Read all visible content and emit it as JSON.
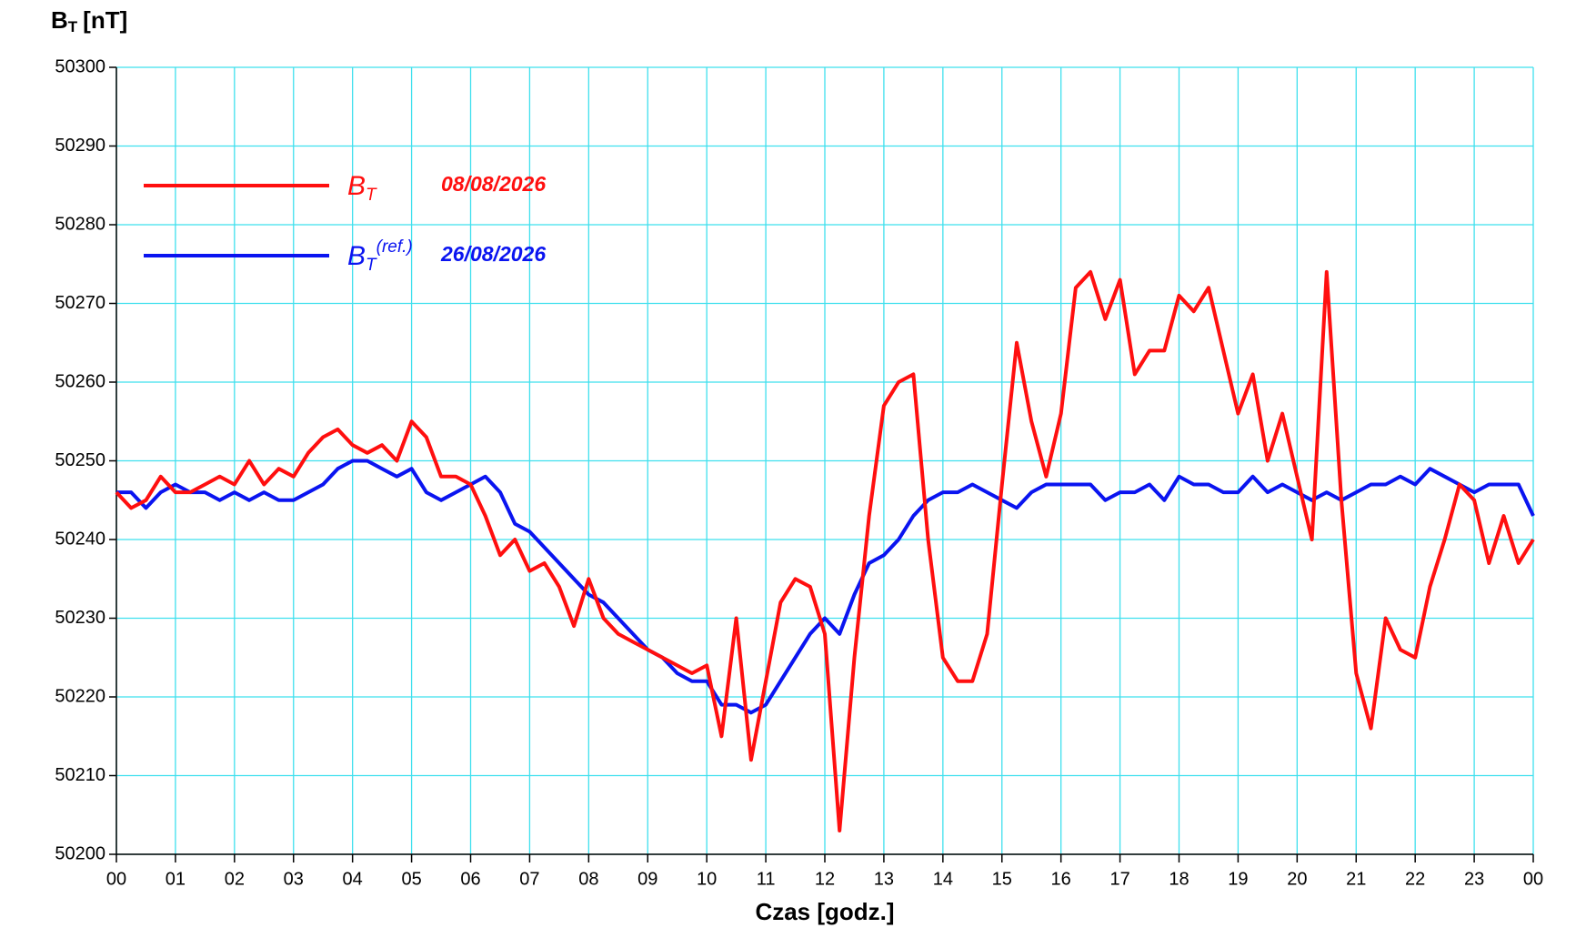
{
  "chart_data": {
    "type": "line",
    "y_label": {
      "main": "B",
      "sub": "T",
      "unit": "[nT]"
    },
    "x_label": "Czas [godz.]",
    "xlim": [
      0,
      24
    ],
    "xticks": [
      {
        "value": 0,
        "label": "00"
      },
      {
        "value": 1,
        "label": "01"
      },
      {
        "value": 2,
        "label": "02"
      },
      {
        "value": 3,
        "label": "03"
      },
      {
        "value": 4,
        "label": "04"
      },
      {
        "value": 5,
        "label": "05"
      },
      {
        "value": 6,
        "label": "06"
      },
      {
        "value": 7,
        "label": "07"
      },
      {
        "value": 8,
        "label": "08"
      },
      {
        "value": 9,
        "label": "09"
      },
      {
        "value": 10,
        "label": "10"
      },
      {
        "value": 11,
        "label": "11"
      },
      {
        "value": 12,
        "label": "12"
      },
      {
        "value": 13,
        "label": "13"
      },
      {
        "value": 14,
        "label": "14"
      },
      {
        "value": 15,
        "label": "15"
      },
      {
        "value": 16,
        "label": "16"
      },
      {
        "value": 17,
        "label": "17"
      },
      {
        "value": 18,
        "label": "18"
      },
      {
        "value": 19,
        "label": "19"
      },
      {
        "value": 20,
        "label": "20"
      },
      {
        "value": 21,
        "label": "21"
      },
      {
        "value": 22,
        "label": "22"
      },
      {
        "value": 23,
        "label": "23"
      },
      {
        "value": 24,
        "label": "00"
      }
    ],
    "ylim": [
      50200,
      50300
    ],
    "yticks": [
      50200,
      50210,
      50220,
      50230,
      50240,
      50250,
      50260,
      50270,
      50280,
      50290,
      50300
    ],
    "grid": true,
    "legend": "top-left",
    "x": [
      0,
      0.25,
      0.5,
      0.75,
      1,
      1.25,
      1.5,
      1.75,
      2,
      2.25,
      2.5,
      2.75,
      3,
      3.25,
      3.5,
      3.75,
      4,
      4.25,
      4.5,
      4.75,
      5,
      5.25,
      5.5,
      5.75,
      6,
      6.25,
      6.5,
      6.75,
      7,
      7.25,
      7.5,
      7.75,
      8,
      8.25,
      8.5,
      8.75,
      9,
      9.25,
      9.5,
      9.75,
      10,
      10.25,
      10.5,
      10.75,
      11,
      11.25,
      11.5,
      11.75,
      12,
      12.25,
      12.5,
      12.75,
      13,
      13.25,
      13.5,
      13.75,
      14,
      14.25,
      14.5,
      14.75,
      15,
      15.25,
      15.5,
      15.75,
      16,
      16.25,
      16.5,
      16.75,
      17,
      17.25,
      17.5,
      17.75,
      18,
      18.25,
      18.5,
      18.75,
      19,
      19.25,
      19.5,
      19.75,
      20,
      20.25,
      20.5,
      20.75,
      21,
      21.25,
      21.5,
      21.75,
      22,
      22.25,
      22.5,
      22.75,
      23,
      23.25,
      23.5,
      23.75,
      24
    ],
    "series": [
      {
        "name": "B",
        "subscript": "T",
        "date": "08/08/2026",
        "color": "#ff0f0f",
        "values": [
          50246,
          50244,
          50245,
          50248,
          50246,
          50246,
          50247,
          50248,
          50247,
          50250,
          50247,
          50249,
          50248,
          50251,
          50253,
          50254,
          50252,
          50251,
          50252,
          50250,
          50255,
          50253,
          50248,
          50248,
          50247,
          50243,
          50238,
          50240,
          50236,
          50237,
          50234,
          50229,
          50235,
          50230,
          50228,
          50227,
          50226,
          50225,
          50224,
          50223,
          50224,
          50215,
          50230,
          50212,
          50222,
          50232,
          50235,
          50234,
          50228,
          50203,
          50225,
          50243,
          50257,
          50260,
          50261,
          50240,
          50225,
          50222,
          50222,
          50228,
          50247,
          50265,
          50255,
          50248,
          50256,
          50272,
          50274,
          50268,
          50273,
          50261,
          50264,
          50264,
          50271,
          50269,
          50272,
          50264,
          50256,
          50261,
          50250,
          50256,
          50248,
          50240,
          50274,
          50245,
          50223,
          50216,
          50230,
          50226,
          50225,
          50234,
          50240,
          50247,
          50245,
          50237,
          50243,
          50237,
          50240
        ]
      },
      {
        "name": "B",
        "subscript": "T",
        "superscript": "(ref.)",
        "date": "26/08/2026",
        "color": "#0a14f0",
        "values": [
          50246,
          50246,
          50244,
          50246,
          50247,
          50246,
          50246,
          50245,
          50246,
          50245,
          50246,
          50245,
          50245,
          50246,
          50247,
          50249,
          50250,
          50250,
          50249,
          50248,
          50249,
          50246,
          50245,
          50246,
          50247,
          50248,
          50246,
          50242,
          50241,
          50239,
          50237,
          50235,
          50233,
          50232,
          50230,
          50228,
          50226,
          50225,
          50223,
          50222,
          50222,
          50219,
          50219,
          50218,
          50219,
          50222,
          50225,
          50228,
          50230,
          50228,
          50233,
          50237,
          50238,
          50240,
          50243,
          50245,
          50246,
          50246,
          50247,
          50246,
          50245,
          50244,
          50246,
          50247,
          50247,
          50247,
          50247,
          50245,
          50246,
          50246,
          50247,
          50245,
          50248,
          50247,
          50247,
          50246,
          50246,
          50248,
          50246,
          50247,
          50246,
          50245,
          50246,
          50245,
          50246,
          50247,
          50247,
          50248,
          50247,
          50249,
          50248,
          50247,
          50246,
          50247,
          50247,
          50247,
          50243
        ]
      }
    ]
  }
}
